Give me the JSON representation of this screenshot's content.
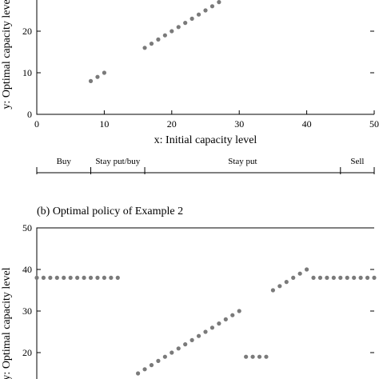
{
  "charts": [
    {
      "type": "scatter",
      "title": "",
      "xlabel": "x: Initial capacity level",
      "ylabel": "y: Optimal capacity level",
      "xlim": [
        0,
        50
      ],
      "ylim": [
        0,
        50
      ],
      "xticks": [
        0,
        10,
        20,
        30,
        40,
        50
      ],
      "yticks": [
        0,
        10,
        20
      ],
      "tick_labels_x": [
        "0",
        "10",
        "20",
        "30",
        "40",
        "50"
      ],
      "tick_labels_y": [
        "0",
        "10",
        "20"
      ],
      "point_color": "#7a7a7a",
      "points": [
        {
          "x": 8,
          "y": 8
        },
        {
          "x": 9,
          "y": 9
        },
        {
          "x": 10,
          "y": 10
        },
        {
          "x": 16,
          "y": 16
        },
        {
          "x": 17,
          "y": 17
        },
        {
          "x": 18,
          "y": 18
        },
        {
          "x": 19,
          "y": 19
        },
        {
          "x": 20,
          "y": 20
        },
        {
          "x": 21,
          "y": 21
        },
        {
          "x": 22,
          "y": 22
        },
        {
          "x": 23,
          "y": 23
        },
        {
          "x": 24,
          "y": 24
        },
        {
          "x": 25,
          "y": 25
        },
        {
          "x": 26,
          "y": 26
        },
        {
          "x": 27,
          "y": 27
        }
      ]
    },
    {
      "type": "scatter",
      "caption": "(b) Optimal policy of Example 2",
      "xlabel": "",
      "ylabel": "y: Optimal capacity level",
      "xlim": [
        0,
        50
      ],
      "ylim": [
        0,
        50
      ],
      "yticks": [
        20,
        30,
        40,
        50
      ],
      "tick_labels_y": [
        "20",
        "30",
        "40",
        "50"
      ],
      "point_color": "#7a7a7a",
      "points": [
        {
          "x": 0,
          "y": 38
        },
        {
          "x": 1,
          "y": 38
        },
        {
          "x": 2,
          "y": 38
        },
        {
          "x": 3,
          "y": 38
        },
        {
          "x": 4,
          "y": 38
        },
        {
          "x": 5,
          "y": 38
        },
        {
          "x": 6,
          "y": 38
        },
        {
          "x": 7,
          "y": 38
        },
        {
          "x": 8,
          "y": 38
        },
        {
          "x": 9,
          "y": 38
        },
        {
          "x": 10,
          "y": 38
        },
        {
          "x": 11,
          "y": 38
        },
        {
          "x": 12,
          "y": 38
        },
        {
          "x": 15,
          "y": 15
        },
        {
          "x": 16,
          "y": 16
        },
        {
          "x": 17,
          "y": 17
        },
        {
          "x": 18,
          "y": 18
        },
        {
          "x": 19,
          "y": 19
        },
        {
          "x": 20,
          "y": 20
        },
        {
          "x": 21,
          "y": 21
        },
        {
          "x": 22,
          "y": 22
        },
        {
          "x": 23,
          "y": 23
        },
        {
          "x": 24,
          "y": 24
        },
        {
          "x": 25,
          "y": 25
        },
        {
          "x": 26,
          "y": 26
        },
        {
          "x": 27,
          "y": 27
        },
        {
          "x": 28,
          "y": 28
        },
        {
          "x": 29,
          "y": 29
        },
        {
          "x": 30,
          "y": 30
        },
        {
          "x": 31,
          "y": 19
        },
        {
          "x": 32,
          "y": 19
        },
        {
          "x": 33,
          "y": 19
        },
        {
          "x": 34,
          "y": 19
        },
        {
          "x": 35,
          "y": 35
        },
        {
          "x": 36,
          "y": 36
        },
        {
          "x": 37,
          "y": 37
        },
        {
          "x": 38,
          "y": 38
        },
        {
          "x": 39,
          "y": 39
        },
        {
          "x": 40,
          "y": 40
        },
        {
          "x": 41,
          "y": 38
        },
        {
          "x": 42,
          "y": 38
        },
        {
          "x": 43,
          "y": 38
        },
        {
          "x": 44,
          "y": 38
        },
        {
          "x": 45,
          "y": 38
        },
        {
          "x": 46,
          "y": 38
        },
        {
          "x": 47,
          "y": 38
        },
        {
          "x": 48,
          "y": 38
        },
        {
          "x": 49,
          "y": 38
        },
        {
          "x": 50,
          "y": 38
        }
      ]
    }
  ],
  "policy_regions": [
    {
      "label": "Buy",
      "from": 0,
      "to": 8
    },
    {
      "label": "Stay put/buy",
      "from": 8,
      "to": 16
    },
    {
      "label": "Stay put",
      "from": 16,
      "to": 45
    },
    {
      "label": "Sell",
      "from": 45,
      "to": 50
    }
  ]
}
